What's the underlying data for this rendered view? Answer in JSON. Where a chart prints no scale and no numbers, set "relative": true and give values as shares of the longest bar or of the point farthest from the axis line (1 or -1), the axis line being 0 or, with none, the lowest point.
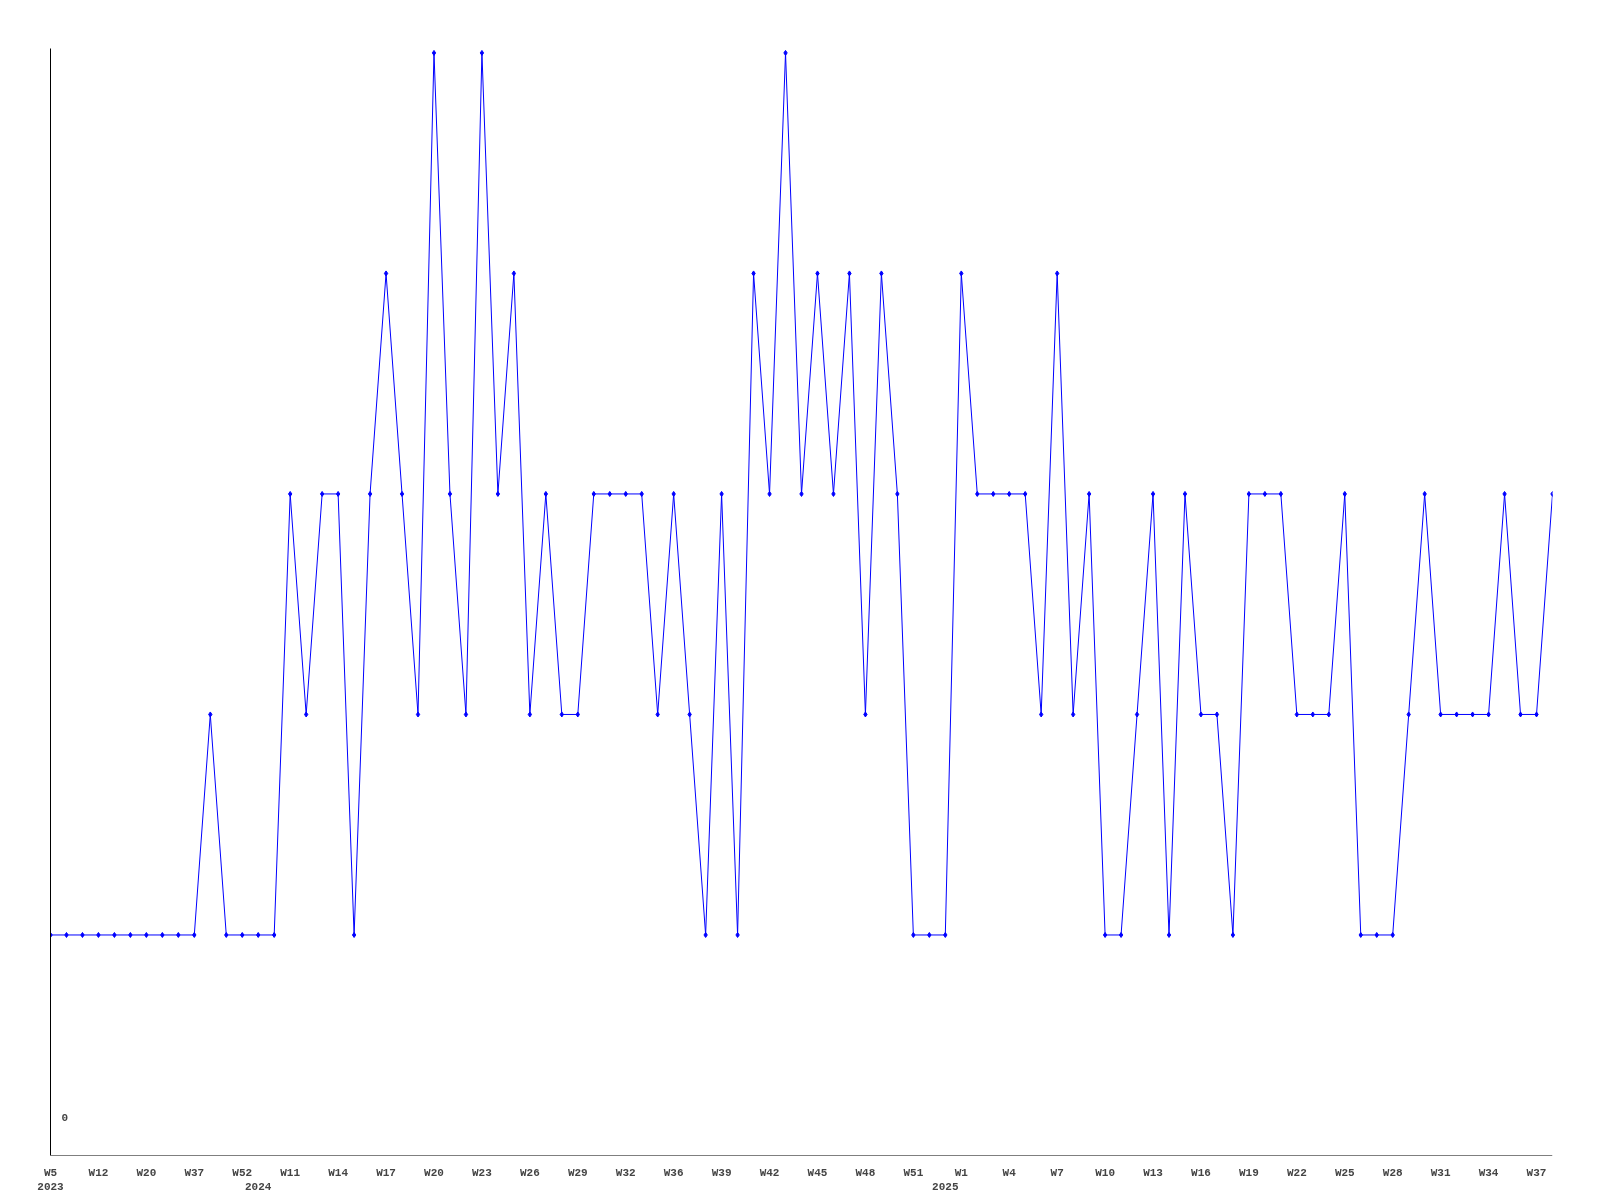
{
  "chart_data": {
    "type": "line",
    "relative": true,
    "color": "#0000ff",
    "marker": "diamond",
    "grid": false,
    "annotations": [
      "0"
    ],
    "categories": [
      "W5\n2023",
      null,
      null,
      "W12",
      null,
      null,
      "W20",
      null,
      null,
      "W37",
      null,
      null,
      "W52",
      "\n2024",
      null,
      "W11",
      null,
      null,
      "W14",
      null,
      null,
      "W17",
      null,
      null,
      "W20",
      null,
      null,
      "W23",
      null,
      null,
      "W26",
      null,
      null,
      "W29",
      null,
      null,
      "W32",
      null,
      null,
      "W36",
      null,
      null,
      "W39",
      null,
      null,
      "W42",
      null,
      null,
      "W45",
      null,
      null,
      "W48",
      null,
      null,
      "W51",
      null,
      "\n2025",
      "W1",
      null,
      null,
      "W4",
      null,
      null,
      "W7",
      null,
      null,
      "W10",
      null,
      null,
      "W13",
      null,
      null,
      "W16",
      null,
      null,
      "W19",
      null,
      null,
      "W22",
      null,
      null,
      "W25",
      null,
      null,
      "W28",
      null,
      null,
      "W31",
      null,
      null,
      "W34",
      null,
      null,
      "W37",
      null
    ],
    "values": [
      0.2,
      0.2,
      0.2,
      0.2,
      0.2,
      0.2,
      0.2,
      0.2,
      0.2,
      0.2,
      0.4,
      0.2,
      0.2,
      0.2,
      0.2,
      0.6,
      0.4,
      0.6,
      0.6,
      0.2,
      0.6,
      0.8,
      0.6,
      0.4,
      1,
      0.6,
      0.4,
      1,
      0.6,
      0.8,
      0.4,
      0.6,
      0.4,
      0.4,
      0.6,
      0.6,
      0.6,
      0.6,
      0.4,
      0.6,
      0.4,
      0.2,
      0.6,
      0.2,
      0.8,
      0.6,
      1,
      0.6,
      0.8,
      0.6,
      0.8,
      0.4,
      0.8,
      0.6,
      0.2,
      0.2,
      0.2,
      0.8,
      0.6,
      0.6,
      0.6,
      0.6,
      0.4,
      0.8,
      0.4,
      0.6,
      0.2,
      0.2,
      0.4,
      0.6,
      0.2,
      0.6,
      0.4,
      0.4,
      0.2,
      0.6,
      0.6,
      0.6,
      0.4,
      0.4,
      0.4,
      0.6,
      0.2,
      0.2,
      0.2,
      0.4,
      0.6,
      0.4,
      0.4,
      0.4,
      0.4,
      0.6,
      0.4,
      0.4,
      0.6
    ]
  }
}
